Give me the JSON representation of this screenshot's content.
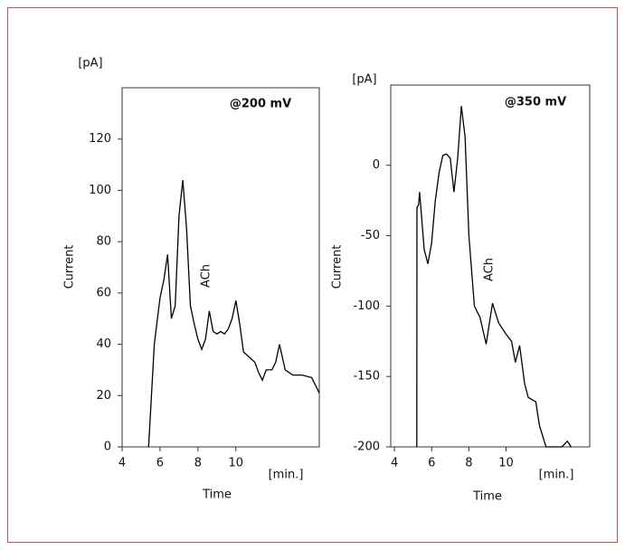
{
  "chart_data": [
    {
      "type": "line",
      "label": "@200 mV",
      "annotation": "ACh",
      "x_label": "Time",
      "y_label": "Current",
      "y_unit": "[pA]",
      "x_unit": "[min.]",
      "color": "#000000",
      "xlim": [
        4,
        14.4
      ],
      "xticks": [
        4,
        6,
        8,
        10
      ],
      "ylim": [
        0,
        140
      ],
      "yticks": [
        0,
        20,
        40,
        60,
        80,
        100,
        120
      ],
      "x": [
        5.4,
        5.7,
        6.0,
        6.2,
        6.4,
        6.6,
        6.8,
        7.0,
        7.2,
        7.4,
        7.6,
        7.8,
        8.0,
        8.2,
        8.4,
        8.6,
        8.8,
        9.0,
        9.2,
        9.4,
        9.6,
        9.8,
        10.0,
        10.2,
        10.4,
        11.0,
        11.2,
        11.4,
        11.6,
        11.9,
        12.1,
        12.3,
        12.6,
        13.0,
        13.5,
        14.0,
        14.4
      ],
      "values": [
        0,
        40,
        58,
        65,
        75,
        50,
        55,
        90,
        104,
        85,
        55,
        48,
        42,
        38,
        42,
        53,
        45,
        44,
        45,
        44,
        46,
        50,
        57,
        48,
        37,
        33,
        29,
        26,
        30,
        30,
        33,
        40,
        30,
        28,
        28,
        27,
        21
      ]
    },
    {
      "type": "line",
      "label": "@350 mV",
      "annotation": "ACh",
      "x_label": "Time",
      "y_label": "Current",
      "y_unit": "[pA]",
      "x_unit": "[min.]",
      "color": "#000000",
      "xlim": [
        3.8,
        14.5
      ],
      "xticks": [
        4,
        6,
        8,
        10
      ],
      "ylim": [
        -200,
        57
      ],
      "yticks": [
        -200,
        -150,
        -100,
        -50,
        0
      ],
      "x": [
        5.2,
        5.21,
        5.3,
        5.35,
        5.45,
        5.6,
        5.8,
        6.0,
        6.2,
        6.4,
        6.6,
        6.8,
        7.0,
        7.2,
        7.4,
        7.6,
        7.8,
        8.0,
        8.3,
        8.6,
        8.93,
        9.27,
        9.6,
        10.0,
        10.3,
        10.5,
        10.73,
        11.0,
        11.2,
        11.6,
        11.8,
        12.15,
        12.6,
        13.0,
        13.3,
        13.5
      ],
      "values": [
        -200,
        -30,
        -28,
        -19,
        -35,
        -60,
        -70,
        -55,
        -25,
        -5,
        7,
        8,
        5,
        -19,
        5,
        42,
        20,
        -50,
        -100,
        -108,
        -127,
        -98,
        -112,
        -120,
        -125,
        -140,
        -128,
        -155,
        -165,
        -168,
        -185,
        -200,
        -200,
        -200,
        -196,
        -200
      ]
    }
  ]
}
